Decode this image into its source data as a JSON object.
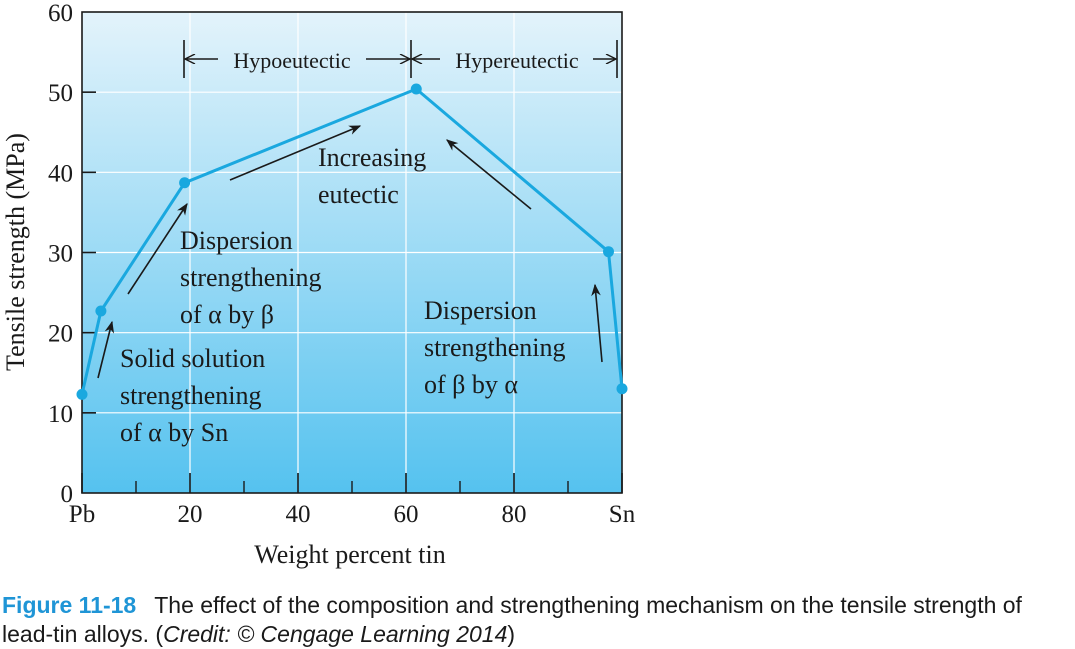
{
  "chart_data": {
    "type": "line",
    "xlabel": "Weight percent tin",
    "ylabel": "Tensile strength (MPa)",
    "xlim": [
      0,
      100
    ],
    "ylim": [
      0,
      60
    ],
    "x_ticks": [
      {
        "value": 0,
        "label": "Pb"
      },
      {
        "value": 20,
        "label": "20"
      },
      {
        "value": 40,
        "label": "40"
      },
      {
        "value": 60,
        "label": "60"
      },
      {
        "value": 80,
        "label": "80"
      },
      {
        "value": 100,
        "label": "Sn"
      }
    ],
    "y_ticks": [
      {
        "value": 0,
        "label": "0"
      },
      {
        "value": 10,
        "label": "10"
      },
      {
        "value": 20,
        "label": "20"
      },
      {
        "value": 30,
        "label": "30"
      },
      {
        "value": 40,
        "label": "40"
      },
      {
        "value": 50,
        "label": "50"
      },
      {
        "value": 60,
        "label": "60"
      }
    ],
    "grid": true,
    "series": [
      {
        "color": "#1aa8df",
        "points": [
          {
            "x": 0,
            "y": 12.3
          },
          {
            "x": 3.5,
            "y": 22.7
          },
          {
            "x": 19,
            "y": 38.7
          },
          {
            "x": 61.9,
            "y": 50.4
          },
          {
            "x": 97.5,
            "y": 30.1
          },
          {
            "x": 100,
            "y": 13.0
          }
        ]
      }
    ],
    "regions": [
      {
        "label": "Hypoeutectic",
        "from": 19,
        "to": 61.9
      },
      {
        "label": "Hypereutectic",
        "from": 61.9,
        "to": 100
      }
    ],
    "annotations": [
      {
        "id": "solid-solution",
        "lines": [
          "Solid solution",
          "strengthening",
          "of α by Sn"
        ]
      },
      {
        "id": "dispersion-alpha",
        "lines": [
          "Dispersion",
          "strengthening",
          "of α by β"
        ]
      },
      {
        "id": "increasing-eutectic",
        "lines": [
          "Increasing",
          "eutectic"
        ]
      },
      {
        "id": "dispersion-beta",
        "lines": [
          "Dispersion",
          "strengthening",
          "of β by α"
        ]
      }
    ]
  },
  "caption": {
    "label": "Figure 11-18",
    "text": "The effect of the composition and strengthening mechanism on the tensile strength of lead-tin alloys. (",
    "credit": "Credit: © Cengage Learning 2014",
    "close": ")"
  },
  "colors": {
    "line": "#1aa8df",
    "bg_top": "#e3f3fb",
    "bg_bottom": "#55c2ef",
    "arrow": "#1a1a1a"
  }
}
